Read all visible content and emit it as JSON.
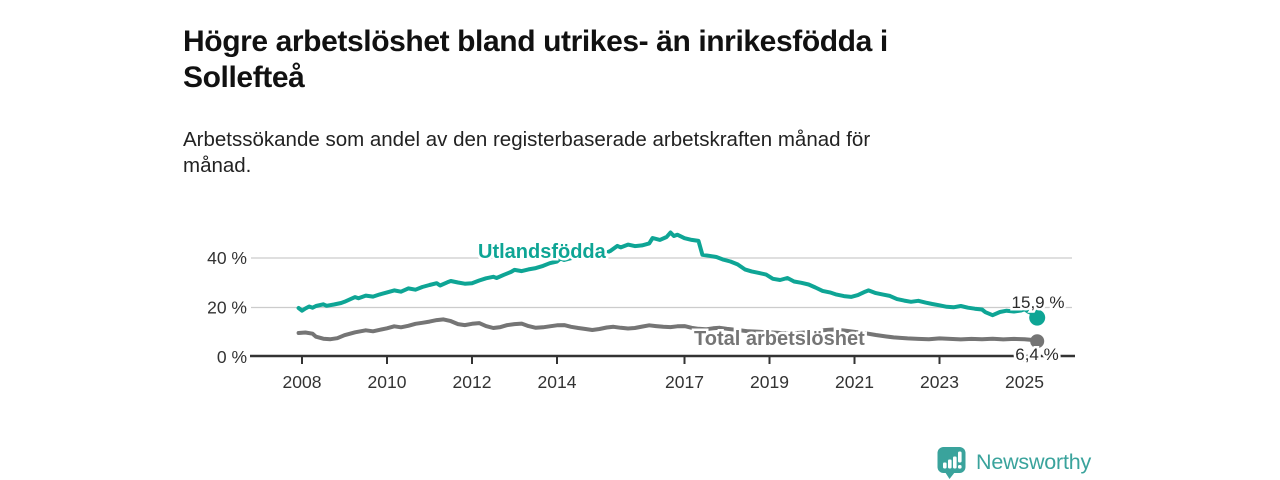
{
  "title": "Högre arbetslöshet bland utrikes- än inrikesfödda i Sollefteå",
  "subtitle": "Arbetssökande som andel av den registerbaserade arbetskraften månad för månad.",
  "branding": {
    "logo_text": "Newsworthy",
    "logo_color": "#3aa39c",
    "logo_icon": "bar-chart-speech-bubble"
  },
  "colors": {
    "foreign_born_line": "#0ea595",
    "total_line": "#757575",
    "axis": "#333333",
    "gridline": "#cccccc",
    "end_label": "#2b2b2b"
  },
  "chart_data": {
    "type": "line",
    "title": "Högre arbetslöshet bland utrikes- än inrikesfödda i Sollefteå",
    "subtitle": "Arbetssökande som andel av den registerbaserade arbetskraften månad för månad.",
    "xlabel": "",
    "ylabel": "",
    "xlim": [
      2007.9,
      2025.6
    ],
    "ylim": [
      0,
      52
    ],
    "grid": "horizontal",
    "legend_position": "inline-labels",
    "x_ticks": [
      2008,
      2010,
      2012,
      2014,
      2017,
      2019,
      2021,
      2023,
      2025
    ],
    "x_tick_labels": [
      "2008",
      "2010",
      "2012",
      "2014",
      "2017",
      "2019",
      "2021",
      "2023",
      "2025"
    ],
    "y_ticks": [
      0,
      20,
      40
    ],
    "y_tick_labels": [
      "0 %",
      "20 %",
      "40 %"
    ],
    "series": [
      {
        "name": "Utlandsfödda",
        "color": "#0ea595",
        "end_value": 15.9,
        "end_label": "15,9 %",
        "points": [
          [
            2007.92,
            19.8
          ],
          [
            2008.0,
            18.7
          ],
          [
            2008.08,
            19.6
          ],
          [
            2008.17,
            20.4
          ],
          [
            2008.25,
            19.9
          ],
          [
            2008.33,
            20.6
          ],
          [
            2008.5,
            21.3
          ],
          [
            2008.58,
            20.7
          ],
          [
            2008.75,
            21.2
          ],
          [
            2008.92,
            21.8
          ],
          [
            2009.0,
            22.3
          ],
          [
            2009.17,
            23.6
          ],
          [
            2009.25,
            24.2
          ],
          [
            2009.33,
            23.7
          ],
          [
            2009.5,
            24.8
          ],
          [
            2009.67,
            24.4
          ],
          [
            2009.83,
            25.3
          ],
          [
            2010.0,
            26.1
          ],
          [
            2010.17,
            26.9
          ],
          [
            2010.33,
            26.4
          ],
          [
            2010.5,
            27.7
          ],
          [
            2010.67,
            27.2
          ],
          [
            2010.83,
            28.3
          ],
          [
            2011.0,
            29.1
          ],
          [
            2011.17,
            29.8
          ],
          [
            2011.25,
            28.9
          ],
          [
            2011.42,
            30.2
          ],
          [
            2011.5,
            30.7
          ],
          [
            2011.67,
            30.1
          ],
          [
            2011.83,
            29.6
          ],
          [
            2012.0,
            29.8
          ],
          [
            2012.17,
            30.9
          ],
          [
            2012.33,
            31.8
          ],
          [
            2012.5,
            32.4
          ],
          [
            2012.58,
            31.9
          ],
          [
            2012.75,
            33.2
          ],
          [
            2012.92,
            34.4
          ],
          [
            2013.0,
            35.2
          ],
          [
            2013.17,
            34.7
          ],
          [
            2013.33,
            35.4
          ],
          [
            2013.5,
            35.9
          ],
          [
            2013.67,
            36.8
          ],
          [
            2013.83,
            37.9
          ],
          [
            2014.0,
            38.6
          ],
          [
            2014.08,
            39.8
          ],
          [
            2014.17,
            39.2
          ],
          [
            2014.33,
            39.9
          ],
          [
            2014.5,
            40.6
          ],
          [
            2014.67,
            40.1
          ],
          [
            2014.83,
            41.2
          ],
          [
            2015.0,
            42.1
          ],
          [
            2015.08,
            41.5
          ],
          [
            2015.25,
            42.8
          ],
          [
            2015.42,
            44.9
          ],
          [
            2015.5,
            44.3
          ],
          [
            2015.67,
            45.4
          ],
          [
            2015.83,
            44.8
          ],
          [
            2016.0,
            45.1
          ],
          [
            2016.17,
            45.9
          ],
          [
            2016.25,
            48.1
          ],
          [
            2016.42,
            47.3
          ],
          [
            2016.58,
            48.5
          ],
          [
            2016.67,
            50.3
          ],
          [
            2016.75,
            48.9
          ],
          [
            2016.83,
            49.4
          ],
          [
            2017.0,
            48.0
          ],
          [
            2017.17,
            47.3
          ],
          [
            2017.33,
            46.9
          ],
          [
            2017.42,
            41.3
          ],
          [
            2017.58,
            40.9
          ],
          [
            2017.75,
            40.4
          ],
          [
            2017.92,
            39.3
          ],
          [
            2018.08,
            38.6
          ],
          [
            2018.25,
            37.4
          ],
          [
            2018.42,
            35.4
          ],
          [
            2018.58,
            34.6
          ],
          [
            2018.75,
            34.0
          ],
          [
            2018.92,
            33.3
          ],
          [
            2019.08,
            31.6
          ],
          [
            2019.25,
            31.1
          ],
          [
            2019.42,
            31.9
          ],
          [
            2019.58,
            30.5
          ],
          [
            2019.75,
            30.0
          ],
          [
            2019.92,
            29.3
          ],
          [
            2020.08,
            28.1
          ],
          [
            2020.25,
            26.7
          ],
          [
            2020.42,
            26.1
          ],
          [
            2020.58,
            25.2
          ],
          [
            2020.75,
            24.6
          ],
          [
            2020.92,
            24.3
          ],
          [
            2021.08,
            25.0
          ],
          [
            2021.25,
            26.4
          ],
          [
            2021.33,
            26.9
          ],
          [
            2021.5,
            25.8
          ],
          [
            2021.67,
            25.2
          ],
          [
            2021.83,
            24.7
          ],
          [
            2022.0,
            23.4
          ],
          [
            2022.17,
            22.8
          ],
          [
            2022.33,
            22.3
          ],
          [
            2022.5,
            22.7
          ],
          [
            2022.67,
            22.0
          ],
          [
            2022.83,
            21.4
          ],
          [
            2023.0,
            20.9
          ],
          [
            2023.17,
            20.3
          ],
          [
            2023.33,
            20.1
          ],
          [
            2023.5,
            20.6
          ],
          [
            2023.67,
            19.9
          ],
          [
            2023.83,
            19.5
          ],
          [
            2024.0,
            19.2
          ],
          [
            2024.08,
            18.1
          ],
          [
            2024.25,
            16.9
          ],
          [
            2024.42,
            18.2
          ],
          [
            2024.58,
            18.7
          ],
          [
            2024.75,
            18.4
          ],
          [
            2024.92,
            18.8
          ],
          [
            2025.0,
            19.3
          ],
          [
            2025.08,
            18.4
          ],
          [
            2025.17,
            17.7
          ],
          [
            2025.3,
            15.9
          ]
        ]
      },
      {
        "name": "Total arbetslöshet",
        "color": "#757575",
        "end_value": 6.4,
        "end_label": "6,4 %",
        "points": [
          [
            2007.92,
            9.7
          ],
          [
            2008.08,
            9.9
          ],
          [
            2008.25,
            9.4
          ],
          [
            2008.33,
            8.2
          ],
          [
            2008.5,
            7.4
          ],
          [
            2008.67,
            7.2
          ],
          [
            2008.83,
            7.6
          ],
          [
            2009.0,
            8.8
          ],
          [
            2009.25,
            10.0
          ],
          [
            2009.5,
            10.8
          ],
          [
            2009.67,
            10.4
          ],
          [
            2009.83,
            11.0
          ],
          [
            2010.0,
            11.6
          ],
          [
            2010.17,
            12.4
          ],
          [
            2010.33,
            12.0
          ],
          [
            2010.5,
            12.6
          ],
          [
            2010.67,
            13.4
          ],
          [
            2010.83,
            13.8
          ],
          [
            2011.0,
            14.3
          ],
          [
            2011.17,
            14.9
          ],
          [
            2011.33,
            15.2
          ],
          [
            2011.5,
            14.5
          ],
          [
            2011.67,
            13.3
          ],
          [
            2011.83,
            12.9
          ],
          [
            2012.0,
            13.4
          ],
          [
            2012.17,
            13.7
          ],
          [
            2012.33,
            12.5
          ],
          [
            2012.5,
            11.7
          ],
          [
            2012.67,
            12.1
          ],
          [
            2012.83,
            12.9
          ],
          [
            2013.0,
            13.3
          ],
          [
            2013.17,
            13.5
          ],
          [
            2013.33,
            12.5
          ],
          [
            2013.5,
            11.8
          ],
          [
            2013.67,
            12.0
          ],
          [
            2013.83,
            12.4
          ],
          [
            2014.0,
            12.8
          ],
          [
            2014.17,
            12.9
          ],
          [
            2014.33,
            12.2
          ],
          [
            2014.5,
            11.7
          ],
          [
            2014.67,
            11.3
          ],
          [
            2014.83,
            10.9
          ],
          [
            2015.0,
            11.3
          ],
          [
            2015.17,
            11.9
          ],
          [
            2015.33,
            12.2
          ],
          [
            2015.5,
            11.8
          ],
          [
            2015.67,
            11.5
          ],
          [
            2015.83,
            11.7
          ],
          [
            2016.0,
            12.3
          ],
          [
            2016.17,
            12.8
          ],
          [
            2016.33,
            12.5
          ],
          [
            2016.5,
            12.2
          ],
          [
            2016.67,
            12.1
          ],
          [
            2016.83,
            12.4
          ],
          [
            2017.0,
            12.5
          ],
          [
            2017.17,
            11.8
          ],
          [
            2017.33,
            11.4
          ],
          [
            2017.5,
            11.2
          ],
          [
            2017.67,
            11.6
          ],
          [
            2017.83,
            11.8
          ],
          [
            2018.0,
            11.4
          ],
          [
            2018.25,
            10.9
          ],
          [
            2018.5,
            10.4
          ],
          [
            2018.75,
            10.2
          ],
          [
            2019.0,
            10.0
          ],
          [
            2019.25,
            9.7
          ],
          [
            2019.5,
            9.5
          ],
          [
            2019.75,
            9.8
          ],
          [
            2020.0,
            10.1
          ],
          [
            2020.25,
            10.8
          ],
          [
            2020.5,
            11.1
          ],
          [
            2020.75,
            10.7
          ],
          [
            2021.0,
            10.2
          ],
          [
            2021.25,
            9.6
          ],
          [
            2021.5,
            8.9
          ],
          [
            2021.75,
            8.3
          ],
          [
            2021.92,
            7.9
          ],
          [
            2022.08,
            7.7
          ],
          [
            2022.25,
            7.5
          ],
          [
            2022.5,
            7.3
          ],
          [
            2022.75,
            7.2
          ],
          [
            2023.0,
            7.5
          ],
          [
            2023.25,
            7.3
          ],
          [
            2023.5,
            7.1
          ],
          [
            2023.75,
            7.3
          ],
          [
            2024.0,
            7.2
          ],
          [
            2024.25,
            7.4
          ],
          [
            2024.5,
            7.1
          ],
          [
            2024.75,
            7.3
          ],
          [
            2025.0,
            7.2
          ],
          [
            2025.17,
            6.9
          ],
          [
            2025.3,
            6.4
          ]
        ]
      }
    ]
  }
}
